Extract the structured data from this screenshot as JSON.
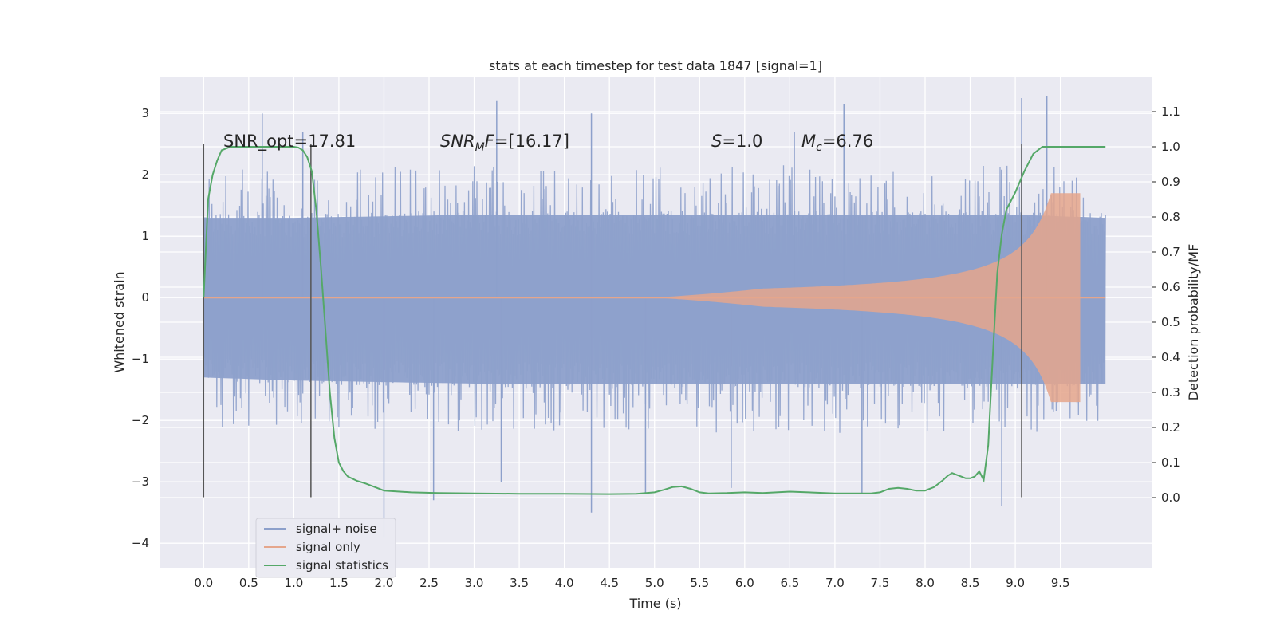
{
  "chart_data": {
    "type": "line",
    "title": "stats at each timestep for test data 1847 [signal=1]",
    "xlabel": "Time (s)",
    "ylabel": "Whitened strain",
    "ylabel_right": "Detection probability/MF",
    "xlim": [
      -0.48,
      10.52
    ],
    "ylim": [
      -4.4,
      3.6
    ],
    "ylim_right": [
      -0.2,
      1.2
    ],
    "x_ticks": [
      "0.0",
      "0.5",
      "1.0",
      "1.5",
      "2.0",
      "2.5",
      "3.0",
      "3.5",
      "4.0",
      "4.5",
      "5.0",
      "5.5",
      "6.0",
      "6.5",
      "7.0",
      "7.5",
      "8.0",
      "8.5",
      "9.0",
      "9.5"
    ],
    "y_ticks": [
      "3",
      "2",
      "1",
      "0",
      "−1",
      "−2",
      "−3",
      "−4"
    ],
    "y_tick_values": [
      3,
      2,
      1,
      0,
      -1,
      -2,
      -3,
      -4
    ],
    "y_ticks_right": [
      "1.1",
      "1.0",
      "0.9",
      "0.8",
      "0.7",
      "0.6",
      "0.5",
      "0.4",
      "0.3",
      "0.2",
      "0.1",
      "0.0"
    ],
    "y_tick_values_right": [
      1.1,
      1.0,
      0.9,
      0.8,
      0.7,
      0.6,
      0.5,
      0.4,
      0.3,
      0.2,
      0.1,
      0.0
    ],
    "grid": true,
    "legend_position": "lower-left",
    "annotations": [
      {
        "id": "snr-opt",
        "text": "SNR_opt=17.81",
        "x": 0.2,
        "y": 2.6
      },
      {
        "id": "snr-mf",
        "text": "SNRMF=[16.17]",
        "x": 2.6,
        "y": 2.6
      },
      {
        "id": "s-val",
        "text": "S=1.0",
        "x": 5.6,
        "y": 2.6
      },
      {
        "id": "mc-val",
        "text": "Mc=6.76",
        "x": 6.6,
        "y": 2.6
      }
    ],
    "vertical_lines_x": [
      0.0,
      1.19,
      9.07
    ],
    "vertical_lines_yrange": [
      -3.25,
      2.5
    ],
    "series": [
      {
        "name": "signal+ noise",
        "color": "#8da0cb",
        "x_range": [
          0.0,
          10.0
        ],
        "envelope_upper": [
          [
            0.0,
            1.3
          ],
          [
            1.0,
            1.3
          ],
          [
            3.0,
            1.35
          ],
          [
            5.0,
            1.35
          ],
          [
            7.0,
            1.35
          ],
          [
            9.0,
            1.35
          ],
          [
            10.0,
            1.3
          ]
        ],
        "envelope_lower": [
          [
            0.0,
            -1.3
          ],
          [
            1.0,
            -1.35
          ],
          [
            3.0,
            -1.4
          ],
          [
            5.0,
            -1.4
          ],
          [
            7.0,
            -1.4
          ],
          [
            9.0,
            -1.4
          ],
          [
            10.0,
            -1.4
          ]
        ],
        "peaks": [
          [
            0.65,
            3.0
          ],
          [
            1.1,
            2.7
          ],
          [
            3.25,
            3.2
          ],
          [
            4.3,
            3.0
          ],
          [
            6.55,
            2.7
          ],
          [
            7.1,
            3.15
          ],
          [
            9.07,
            3.25
          ],
          [
            9.35,
            3.28
          ],
          [
            2.0,
            -3.9
          ],
          [
            2.55,
            -3.3
          ],
          [
            3.3,
            -3.0
          ],
          [
            4.3,
            -3.5
          ],
          [
            4.9,
            -3.2
          ],
          [
            5.85,
            -3.1
          ],
          [
            7.3,
            -3.2
          ],
          [
            8.85,
            -3.4
          ]
        ]
      },
      {
        "name": "signal only",
        "color": "#e5a68c",
        "x_range": [
          0.0,
          10.0
        ],
        "chirp_start": 5.0,
        "chirp_end": 9.72,
        "chirp_peak": 1.7
      },
      {
        "name": "signal statistics",
        "color": "#55a868",
        "axis": "right",
        "x": [
          0.0,
          0.05,
          0.1,
          0.15,
          0.2,
          0.3,
          0.5,
          0.8,
          1.0,
          1.05,
          1.1,
          1.15,
          1.2,
          1.25,
          1.3,
          1.35,
          1.4,
          1.45,
          1.5,
          1.55,
          1.6,
          1.7,
          1.8,
          1.9,
          2.0,
          2.3,
          2.6,
          3.0,
          3.5,
          4.0,
          4.5,
          4.8,
          5.0,
          5.1,
          5.2,
          5.3,
          5.4,
          5.5,
          5.6,
          5.8,
          6.0,
          6.2,
          6.5,
          7.0,
          7.4,
          7.5,
          7.6,
          7.7,
          7.8,
          7.9,
          8.0,
          8.1,
          8.2,
          8.25,
          8.3,
          8.4,
          8.45,
          8.5,
          8.55,
          8.6,
          8.65,
          8.7,
          8.75,
          8.8,
          8.85,
          8.9,
          9.0,
          9.1,
          9.2,
          9.3,
          9.4,
          9.5,
          9.6,
          9.7,
          9.8,
          9.9,
          10.0
        ],
        "y": [
          0.57,
          0.85,
          0.92,
          0.96,
          0.99,
          1.0,
          1.0,
          1.0,
          1.0,
          0.998,
          0.99,
          0.97,
          0.93,
          0.82,
          0.66,
          0.48,
          0.3,
          0.17,
          0.1,
          0.075,
          0.06,
          0.048,
          0.04,
          0.03,
          0.02,
          0.015,
          0.013,
          0.012,
          0.011,
          0.011,
          0.01,
          0.011,
          0.015,
          0.022,
          0.03,
          0.032,
          0.025,
          0.015,
          0.012,
          0.013,
          0.015,
          0.013,
          0.017,
          0.012,
          0.012,
          0.015,
          0.025,
          0.028,
          0.025,
          0.02,
          0.02,
          0.03,
          0.05,
          0.062,
          0.07,
          0.06,
          0.055,
          0.055,
          0.06,
          0.075,
          0.05,
          0.15,
          0.4,
          0.64,
          0.75,
          0.82,
          0.87,
          0.93,
          0.98,
          1.0,
          1.0,
          1.0,
          1.0,
          1.0,
          1.0,
          1.0,
          1.0
        ]
      }
    ]
  }
}
